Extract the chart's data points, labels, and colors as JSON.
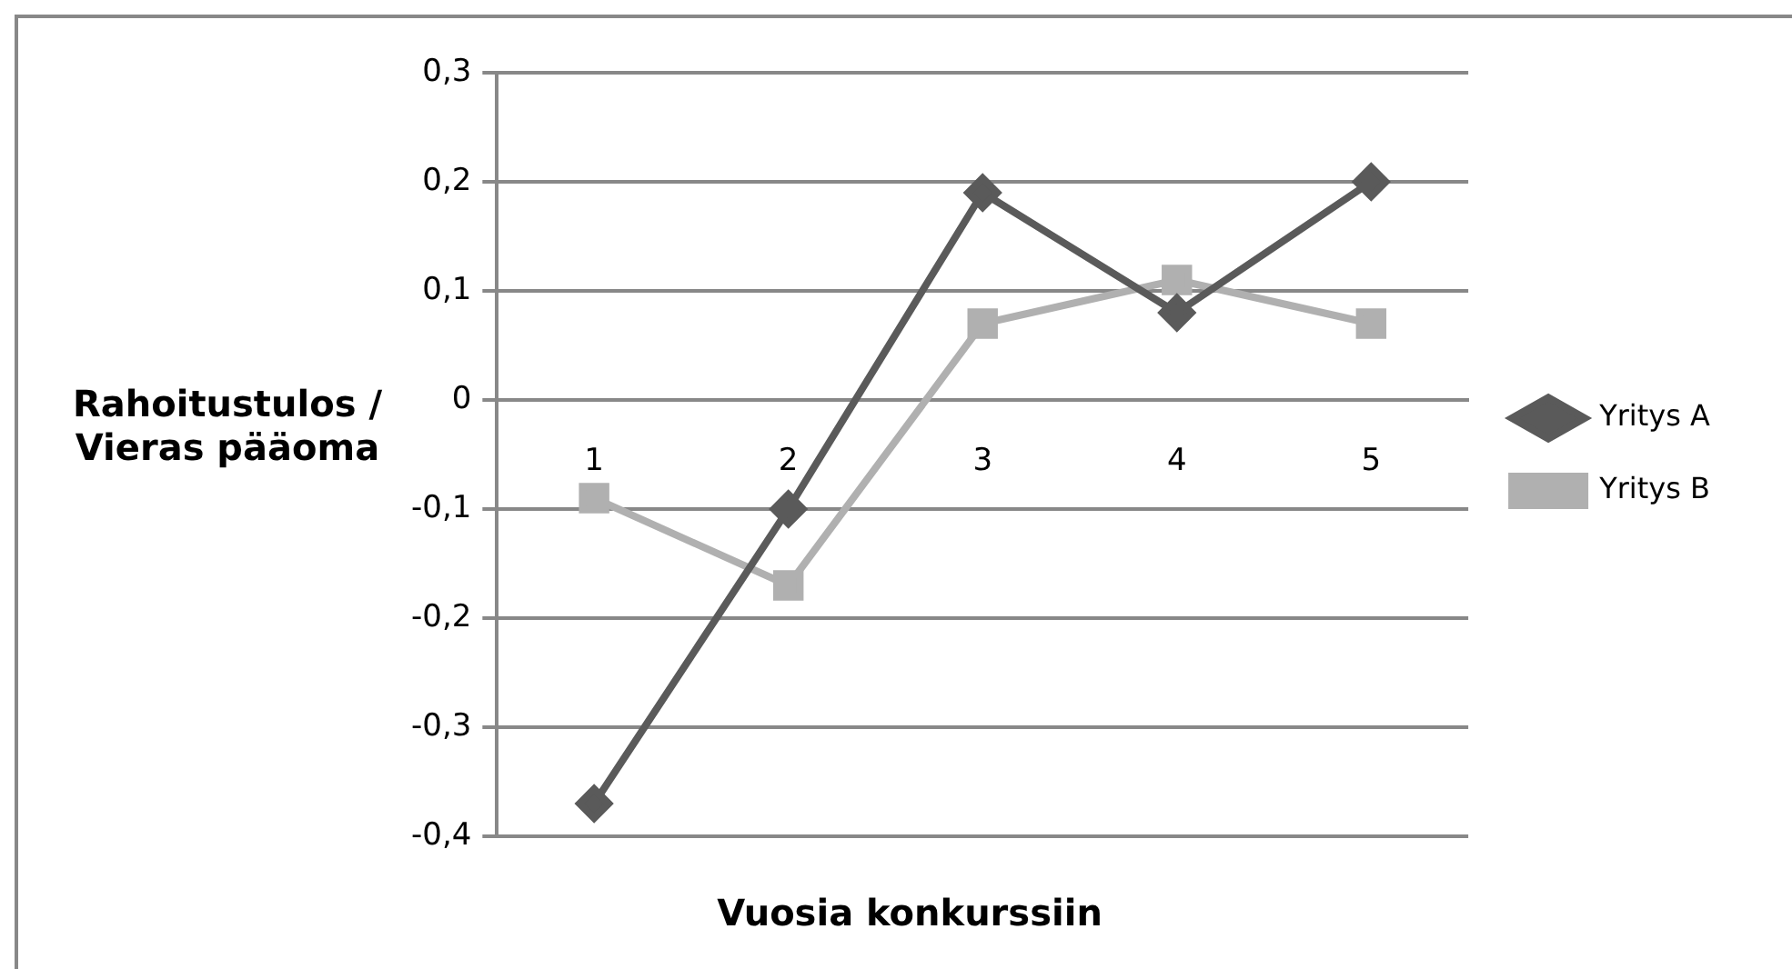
{
  "chart_data": {
    "type": "line",
    "xlabel": "Vuosia konkurssiin",
    "ylabel": "Rahoitustulos / Vieras pääoma",
    "categories": [
      "1",
      "2",
      "3",
      "4",
      "5"
    ],
    "series": [
      {
        "name": "Yritys A",
        "color": "#5a5a5a",
        "marker": "diamond",
        "values": [
          -0.37,
          -0.1,
          0.19,
          0.08,
          0.2
        ]
      },
      {
        "name": "Yritys B",
        "color": "#b0b0b0",
        "marker": "square",
        "values": [
          -0.09,
          -0.17,
          0.07,
          0.11,
          0.07
        ]
      }
    ],
    "ylim": [
      -0.4,
      0.3
    ],
    "yticks": [
      {
        "value": -0.4,
        "label": "-0,4"
      },
      {
        "value": -0.3,
        "label": "-0,3"
      },
      {
        "value": -0.2,
        "label": "-0,2"
      },
      {
        "value": -0.1,
        "label": "-0,1"
      },
      {
        "value": 0,
        "label": "0"
      },
      {
        "value": 0.1,
        "label": "0,1"
      },
      {
        "value": 0.2,
        "label": "0,2"
      },
      {
        "value": 0.3,
        "label": "0,3"
      }
    ],
    "grid": "y",
    "legend": "right",
    "line_style": "solid"
  }
}
